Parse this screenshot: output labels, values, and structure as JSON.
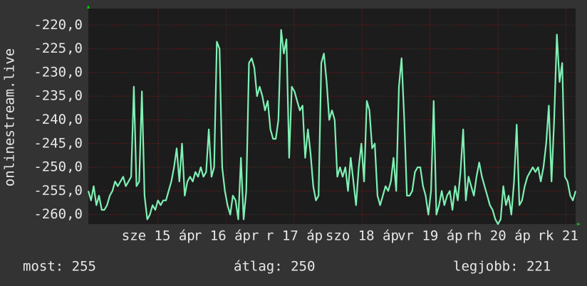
{
  "chart_data": {
    "type": "line",
    "ylabel": "onlinestream.live",
    "ylim": [
      -262,
      -216.5
    ],
    "yticks": [
      {
        "value": -220,
        "label": "-220,0"
      },
      {
        "value": -225,
        "label": "-225,0"
      },
      {
        "value": -230,
        "label": "-230,0"
      },
      {
        "value": -235,
        "label": "-235,0"
      },
      {
        "value": -240,
        "label": "-240,0"
      },
      {
        "value": -245,
        "label": "-245,0"
      },
      {
        "value": -250,
        "label": "-250,0"
      },
      {
        "value": -255,
        "label": "-255,0"
      },
      {
        "value": -260,
        "label": "-260,0"
      }
    ],
    "xlim": [
      13.97,
      21.14
    ],
    "xticks": [
      {
        "value": 15,
        "label": "sze 15 áp"
      },
      {
        "value": 16,
        "label": "r 16 ápr"
      },
      {
        "value": 17,
        "label": "r 17 áp"
      },
      {
        "value": 18,
        "label": "szo 18 áp"
      },
      {
        "value": 19,
        "label": "vr 19 áp"
      },
      {
        "value": 20,
        "label": "rh 20 áp"
      },
      {
        "value": 21,
        "label": "rk 21 á"
      }
    ],
    "grid": true,
    "series": [
      {
        "color": "#7ff0b4",
        "values": [
          -255,
          -257,
          -254,
          -258,
          -256,
          -259,
          -259,
          -258,
          -256,
          -255,
          -253,
          -254,
          -253,
          -252,
          -254,
          -253,
          -252,
          -233,
          -254,
          -253,
          -234,
          -256,
          -261,
          -260,
          -258,
          -259,
          -257,
          -258,
          -257,
          -257,
          -255,
          -253,
          -250,
          -246,
          -253,
          -245,
          -256,
          -253,
          -252,
          -253,
          -251,
          -252,
          -250,
          -252,
          -251,
          -242,
          -252,
          -250,
          -223.5,
          -225,
          -250,
          -255,
          -258,
          -260,
          -256,
          -257,
          -261,
          -248,
          -261,
          -255,
          -228,
          -227,
          -229,
          -235,
          -233,
          -235,
          -238,
          -236,
          -242,
          -244,
          -244,
          -240,
          -221,
          -226,
          -223,
          -248,
          -233,
          -234,
          -236,
          -238,
          -237,
          -248,
          -242,
          -247,
          -254,
          -257,
          -256,
          -228,
          -226,
          -232,
          -240,
          -238,
          -240,
          -252,
          -250,
          -252,
          -250,
          -255,
          -248,
          -253,
          -258,
          -250,
          -245,
          -253,
          -236,
          -238,
          -246,
          -245,
          -256,
          -258,
          -256,
          -254,
          -255,
          -253,
          -248,
          -255,
          -233,
          -227,
          -240,
          -256,
          -256,
          -255,
          -251,
          -250,
          -250,
          -254,
          -256,
          -260,
          -255,
          -236,
          -260,
          -258,
          -255,
          -258,
          -256,
          -255,
          -259,
          -254,
          -257,
          -251,
          -242,
          -257,
          -252,
          -254,
          -256,
          -252,
          -249,
          -252,
          -254,
          -256,
          -258,
          -259,
          -261,
          -262,
          -261,
          -254,
          -258,
          -256,
          -260,
          -253,
          -241,
          -258,
          -257,
          -254,
          -252,
          -251,
          -250,
          -251,
          -250,
          -253,
          -250,
          -245,
          -237,
          -253,
          -240,
          -222,
          -232,
          -228,
          -252,
          -253,
          -256,
          -257,
          -255
        ]
      }
    ],
    "footer": [
      "most: 255",
      "átlag: 250",
      "legjobb: 221"
    ]
  }
}
